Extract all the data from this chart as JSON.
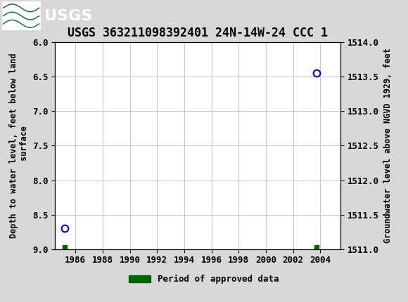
{
  "title": "USGS 363211098392401 24N-14W-24 CCC 1",
  "ylabel_left": "Depth to water level, feet below land\n surface",
  "ylabel_right": "Groundwater level above NGVD 1929, feet",
  "xlim": [
    1984.5,
    2005.5
  ],
  "ylim_left": [
    6.0,
    9.0
  ],
  "ylim_right": [
    1514.0,
    1511.0
  ],
  "xticks": [
    1986,
    1988,
    1990,
    1992,
    1994,
    1996,
    1998,
    2000,
    2002,
    2004
  ],
  "yticks_left": [
    6.0,
    6.5,
    7.0,
    7.5,
    8.0,
    8.5,
    9.0
  ],
  "yticks_right": [
    1514.0,
    1513.5,
    1513.0,
    1512.5,
    1512.0,
    1511.5,
    1511.0
  ],
  "circle_points_x": [
    1985.2,
    2003.7
  ],
  "circle_points_y": [
    8.7,
    6.45
  ],
  "square_points_x": [
    1985.2,
    2003.7
  ],
  "square_points_y": [
    8.97,
    8.97
  ],
  "circle_color": "#0000cc",
  "square_color": "#006400",
  "plot_bg_color": "#ffffff",
  "fig_bg_color": "#d8d8d8",
  "header_color": "#006633",
  "grid_color": "#c8c8c8",
  "legend_label": "Period of approved data",
  "title_fontsize": 12,
  "axis_label_fontsize": 8.5,
  "tick_fontsize": 9
}
